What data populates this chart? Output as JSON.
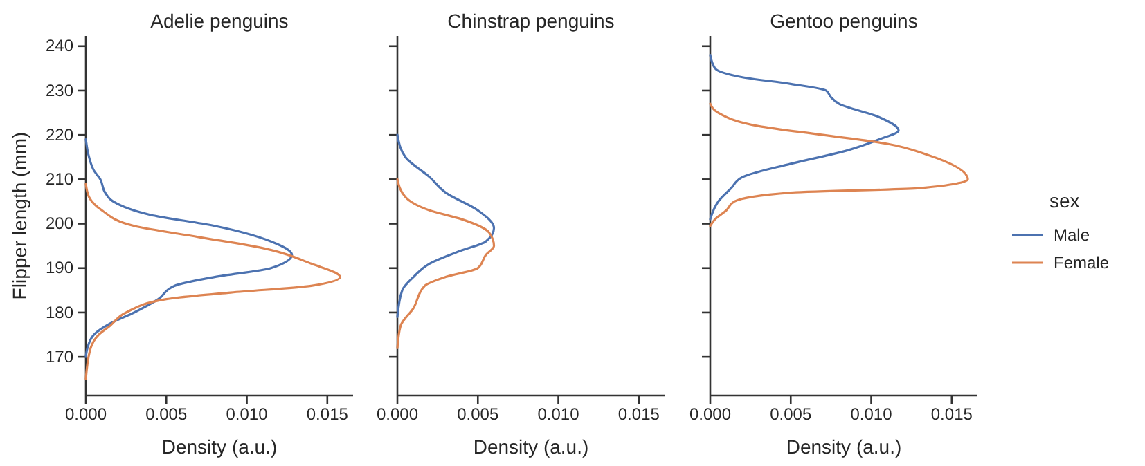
{
  "chart_data": [
    {
      "type": "line",
      "title": "Adelie penguins",
      "xlabel": "Density (a.u.)",
      "ylabel": "Flipper length (mm)",
      "xlim": [
        0,
        0.0166
      ],
      "xticks": [
        {
          "value": 0,
          "label": "0.000"
        },
        {
          "value": 0.005,
          "label": "0.005"
        },
        {
          "value": 0.01,
          "label": "0.010"
        },
        {
          "value": 0.015,
          "label": "0.015"
        }
      ],
      "ylim": [
        161.3,
        242.3
      ],
      "yticks": [
        170,
        180,
        190,
        200,
        210,
        220,
        230,
        240
      ],
      "grid": false,
      "legend": false,
      "series": [
        {
          "color": "#4c72b0",
          "x": [
            0,
            0.0002,
            0.0005,
            0.0009,
            0.0012,
            0.0017,
            0.004,
            0.008,
            0.0115,
            0.0128,
            0.0115,
            0.008,
            0.0055,
            0.0045,
            0.003,
            0.0015,
            0.0005,
            0.0001,
            0
          ],
          "values": [
            219,
            215,
            212,
            210,
            207,
            205,
            202,
            199.5,
            196,
            193,
            190,
            188,
            186,
            183,
            180,
            177.5,
            175,
            172,
            170
          ]
        },
        {
          "color": "#dd8452",
          "x": [
            0,
            0.0002,
            0.001,
            0.003,
            0.007,
            0.011,
            0.014,
            0.0158,
            0.014,
            0.009,
            0.005,
            0.0025,
            0.0015,
            0.0008,
            0.0003,
            0
          ],
          "values": [
            209,
            206,
            203,
            199.5,
            197,
            194.5,
            191,
            188,
            186,
            184.5,
            183,
            180,
            177,
            175,
            172,
            165
          ]
        }
      ]
    },
    {
      "type": "line",
      "title": "Chinstrap penguins",
      "xlabel": "Density (a.u.)",
      "xlim": [
        0,
        0.0166
      ],
      "xticks": [
        {
          "value": 0,
          "label": "0.000"
        },
        {
          "value": 0.005,
          "label": "0.005"
        },
        {
          "value": 0.01,
          "label": "0.010"
        },
        {
          "value": 0.015,
          "label": "0.015"
        }
      ],
      "ylim": [
        161.3,
        242.3
      ],
      "yticks": [
        170,
        180,
        190,
        200,
        210,
        220,
        230,
        240
      ],
      "tick_labels": "x",
      "grid": false,
      "legend": false,
      "series": [
        {
          "color": "#4c72b0",
          "x": [
            0,
            0.0005,
            0.002,
            0.003,
            0.005,
            0.006,
            0.0055,
            0.004,
            0.002,
            0.001,
            0.0003,
            0
          ],
          "values": [
            220,
            215,
            210.5,
            207,
            203,
            199,
            196,
            194,
            191,
            188,
            185,
            179
          ]
        },
        {
          "color": "#dd8452",
          "x": [
            0,
            0.0005,
            0.002,
            0.004,
            0.0057,
            0.006,
            0.0055,
            0.005,
            0.003,
            0.0017,
            0.001,
            0.0002,
            0
          ],
          "values": [
            210,
            206,
            203,
            201,
            198,
            195,
            193,
            190,
            188,
            186,
            181,
            177,
            172
          ]
        }
      ]
    },
    {
      "type": "line",
      "title": "Gentoo penguins",
      "xlabel": "Density (a.u.)",
      "legend_title": "sex",
      "xlim": [
        0,
        0.0166
      ],
      "xticks": [
        {
          "value": 0,
          "label": "0.000"
        },
        {
          "value": 0.005,
          "label": "0.005"
        },
        {
          "value": 0.01,
          "label": "0.010"
        },
        {
          "value": 0.015,
          "label": "0.015"
        }
      ],
      "ylim": [
        161.3,
        242.3
      ],
      "yticks": [
        170,
        180,
        190,
        200,
        210,
        220,
        230,
        240
      ],
      "tick_labels": "x",
      "grid": false,
      "legend": "right",
      "series": [
        {
          "name": "Male",
          "color": "#4c72b0",
          "x": [
            0,
            0.0003,
            0.002,
            0.005,
            0.0072,
            0.0075,
            0.008,
            0.0105,
            0.0117,
            0.0105,
            0.0085,
            0.005,
            0.002,
            0.0013,
            0.0005,
            0
          ],
          "values": [
            238,
            235,
            233,
            231.5,
            230,
            228.5,
            227,
            224,
            221,
            219,
            216.5,
            213.5,
            210.5,
            208,
            205,
            201
          ]
        },
        {
          "name": "Female",
          "color": "#dd8452",
          "x": [
            0,
            0.0005,
            0.003,
            0.007,
            0.011,
            0.0135,
            0.016,
            0.013,
            0.005,
            0.0015,
            0.001,
            0.0003,
            0
          ],
          "values": [
            227,
            225,
            222,
            220,
            218,
            215.5,
            210,
            208,
            207,
            205,
            203,
            201,
            199.5
          ]
        }
      ]
    }
  ]
}
